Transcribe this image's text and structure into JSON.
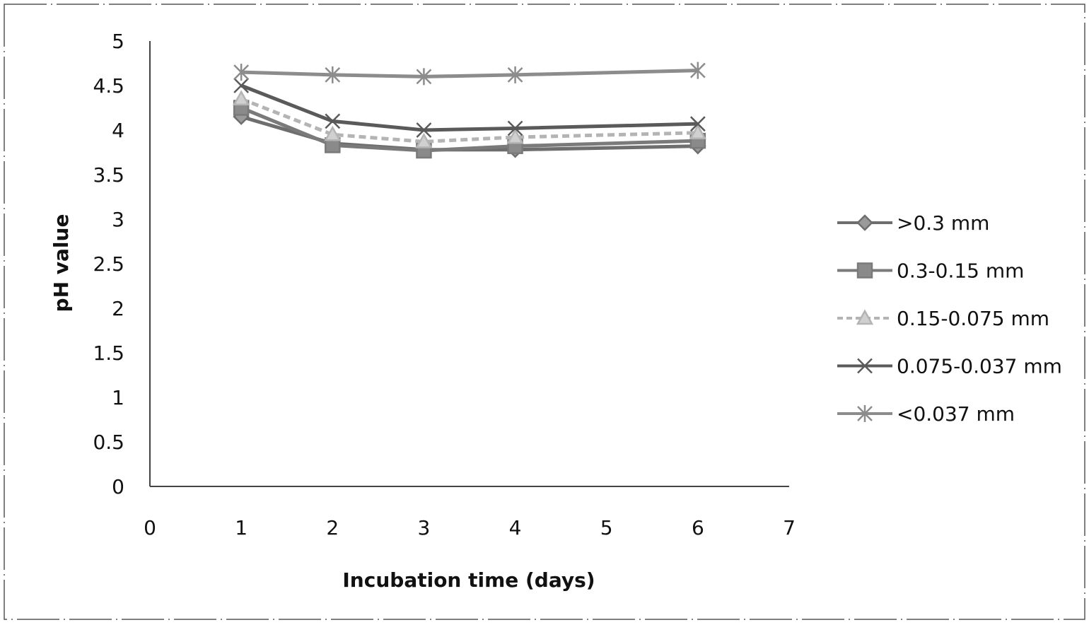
{
  "chart_data": {
    "type": "line",
    "title": "",
    "xlabel": "Incubation time (days)",
    "ylabel": "pH value",
    "xlim": [
      0,
      7
    ],
    "ylim": [
      0,
      5
    ],
    "x_ticks": [
      "0",
      "1",
      "2",
      "3",
      "4",
      "5",
      "6",
      "7"
    ],
    "y_ticks": [
      "0",
      "0.5",
      "1",
      "1.5",
      "2",
      "2.5",
      "3",
      "3.5",
      "4",
      "4.5",
      "5"
    ],
    "grid": false,
    "legend_position": "right",
    "x": [
      1,
      2,
      3,
      4,
      6
    ],
    "series": [
      {
        "name": ">0.3 mm",
        "marker": "diamond",
        "color": "#6e6e6e",
        "values": [
          4.15,
          3.85,
          3.78,
          3.78,
          3.82
        ]
      },
      {
        "name": "0.3-0.15 mm",
        "marker": "square",
        "color": "#7a7a7a",
        "values": [
          4.25,
          3.83,
          3.77,
          3.82,
          3.88
        ]
      },
      {
        "name": "0.15-0.075 mm",
        "marker": "triangle",
        "color": "#b4b4b4",
        "values": [
          4.35,
          3.95,
          3.87,
          3.92,
          3.97
        ]
      },
      {
        "name": "0.075-0.037 mm",
        "marker": "x",
        "color": "#5a5a5a",
        "values": [
          4.5,
          4.1,
          4.0,
          4.02,
          4.07
        ]
      },
      {
        "name": "<0.037 mm",
        "marker": "star",
        "color": "#8c8c8c",
        "values": [
          4.65,
          4.62,
          4.6,
          4.62,
          4.67
        ]
      }
    ]
  }
}
